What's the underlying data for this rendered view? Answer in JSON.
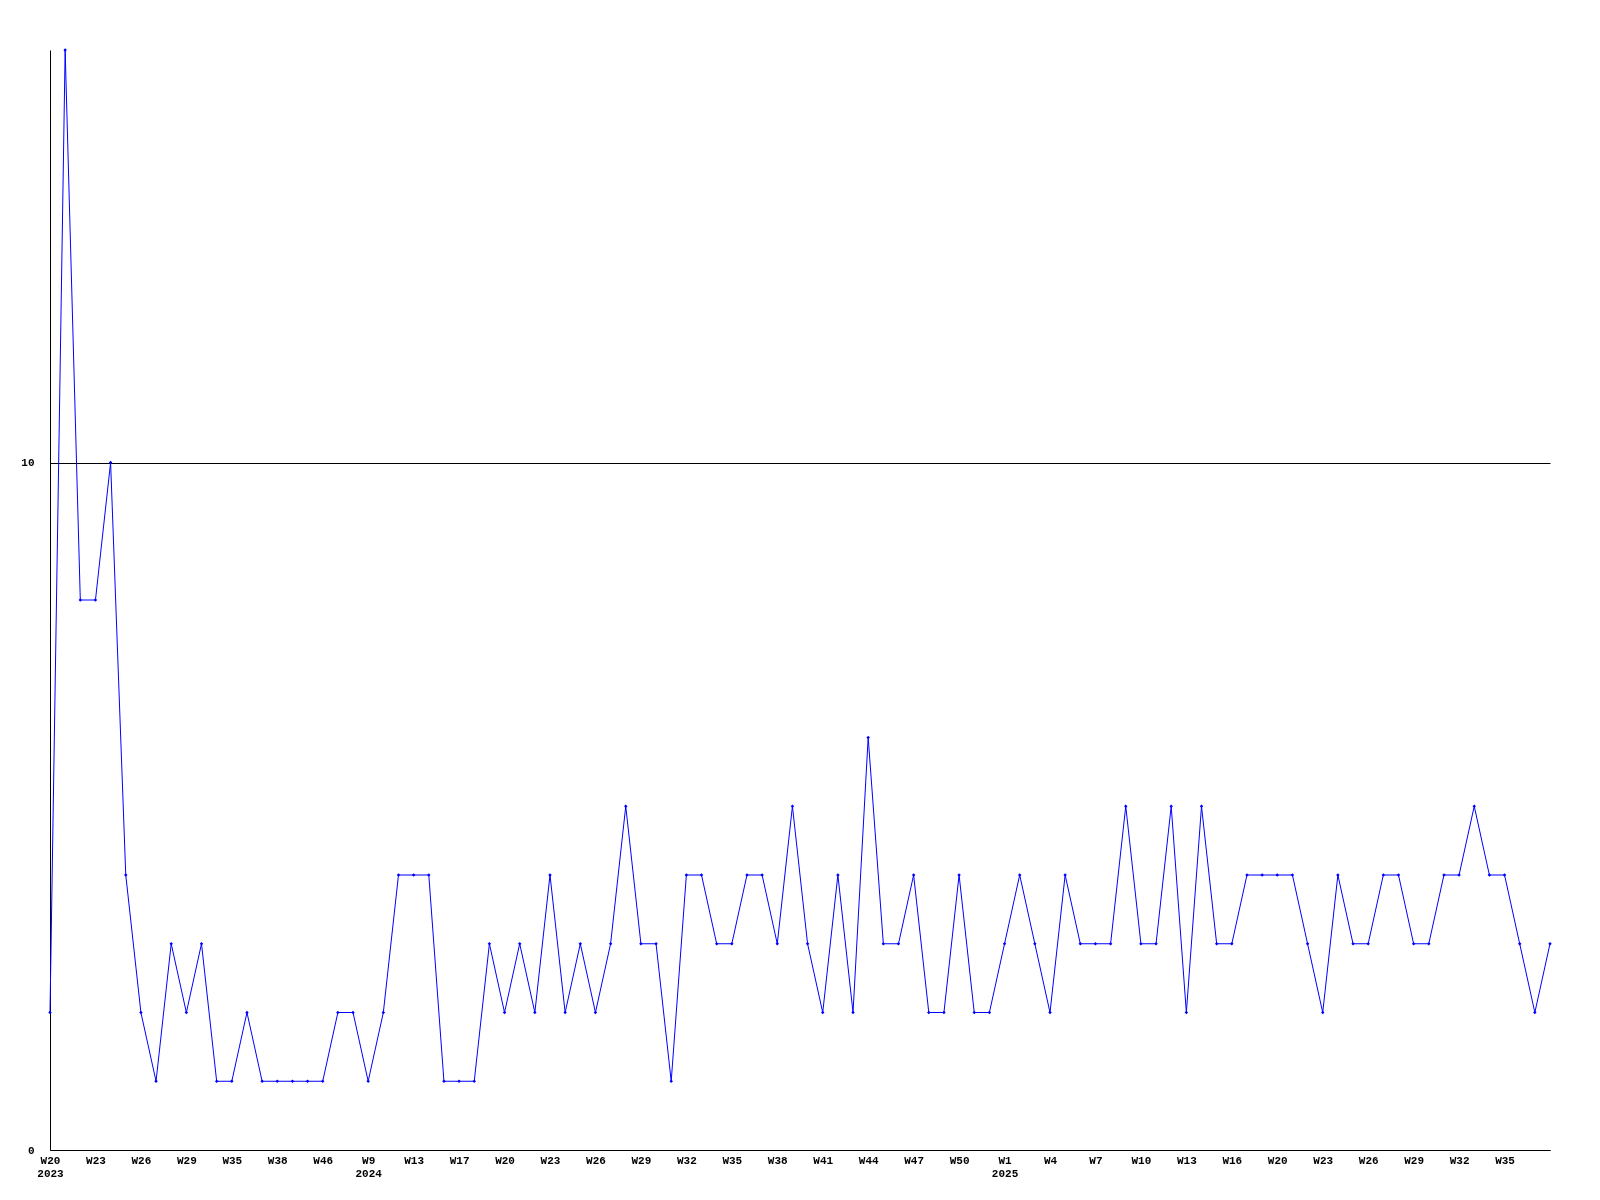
{
  "chart_data": {
    "type": "line",
    "categories": [
      "W20\n2023",
      null,
      null,
      "W23",
      null,
      null,
      "W26",
      null,
      null,
      "W29",
      null,
      null,
      "W35",
      null,
      null,
      "W38",
      null,
      null,
      "W46",
      null,
      null,
      "W9\n2024",
      null,
      null,
      "W13",
      null,
      null,
      "W17",
      null,
      null,
      "W20",
      null,
      null,
      "W23",
      null,
      null,
      "W26",
      null,
      null,
      "W29",
      null,
      null,
      "W32",
      null,
      null,
      "W35",
      null,
      null,
      "W38",
      null,
      null,
      "W41",
      null,
      null,
      "W44",
      null,
      null,
      "W47",
      null,
      null,
      "W50",
      null,
      null,
      "W1\n2025",
      null,
      null,
      "W4",
      null,
      null,
      "W7",
      null,
      null,
      "W10",
      null,
      null,
      "W13",
      null,
      null,
      "W16",
      null,
      null,
      "W20",
      null,
      null,
      "W23",
      null,
      null,
      "W26",
      null,
      null,
      "W29",
      null,
      null,
      "W32",
      null,
      null,
      "W35",
      null,
      null,
      null
    ],
    "series": [
      {
        "color": "#0000ff",
        "values": [
          2,
          16,
          8,
          8,
          10,
          4,
          2,
          1,
          3,
          2,
          3,
          1,
          1,
          2,
          1,
          1,
          1,
          1,
          1,
          2,
          2,
          1,
          2,
          4,
          4,
          4,
          1,
          1,
          1,
          3,
          2,
          3,
          2,
          4,
          2,
          3,
          2,
          3,
          5,
          3,
          3,
          1,
          4,
          4,
          3,
          3,
          4,
          4,
          3,
          5,
          3,
          2,
          4,
          2,
          6,
          3,
          3,
          4,
          2,
          2,
          4,
          2,
          2,
          3,
          4,
          3,
          2,
          4,
          3,
          3,
          3,
          5,
          3,
          3,
          5,
          2,
          5,
          3,
          3,
          4,
          4,
          4,
          4,
          3,
          2,
          4,
          3,
          3,
          4,
          4,
          3,
          3,
          4,
          4,
          5,
          4,
          4,
          3,
          2,
          3
        ]
      }
    ],
    "ylim": [
      0,
      16
    ],
    "yticks": [
      0,
      10
    ],
    "grid": "y",
    "marker": "diamond",
    "line_style": "solid"
  }
}
